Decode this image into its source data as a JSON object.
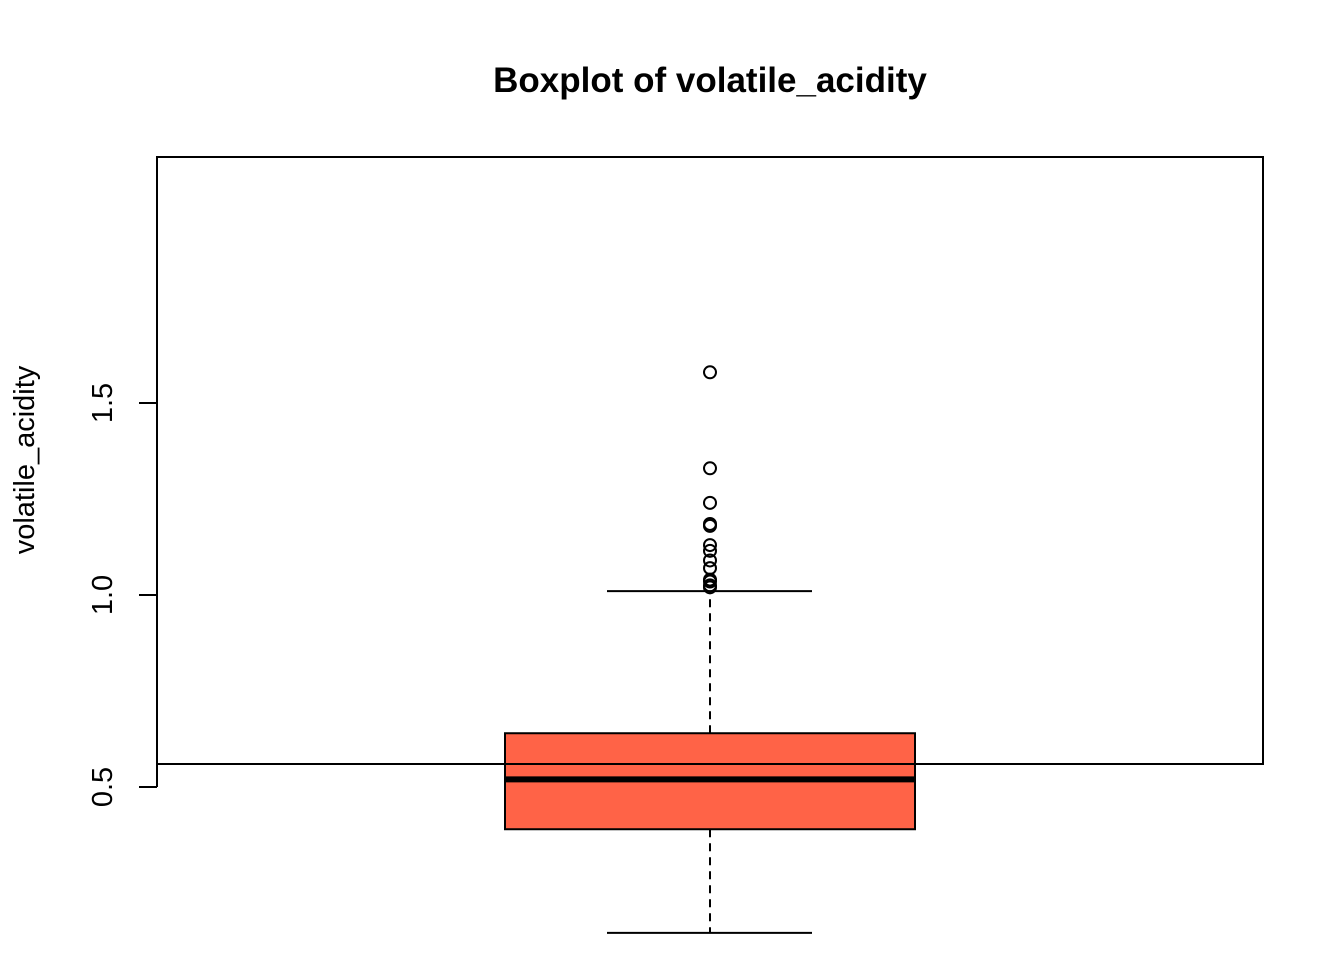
{
  "chart_data": {
    "type": "boxplot",
    "title": "Boxplot of volatile_acidity",
    "xlabel": "",
    "ylabel": "volatile_acidity",
    "ylim": [
      0.12,
      1.58
    ],
    "y_ticks": [
      0.5,
      1.0,
      1.5
    ],
    "y_tick_labels": [
      "0.5",
      "1.0",
      "1.5"
    ],
    "grid": false,
    "legend": "none",
    "box_color": "#ff6347",
    "line_color": "#000000",
    "series": [
      {
        "whisker_low": 0.12,
        "q1": 0.39,
        "median": 0.52,
        "q3": 0.64,
        "whisker_high": 1.01,
        "outliers": [
          1.02,
          1.025,
          1.035,
          1.04,
          1.07,
          1.09,
          1.115,
          1.13,
          1.18,
          1.185,
          1.24,
          1.33,
          1.58
        ]
      }
    ]
  }
}
